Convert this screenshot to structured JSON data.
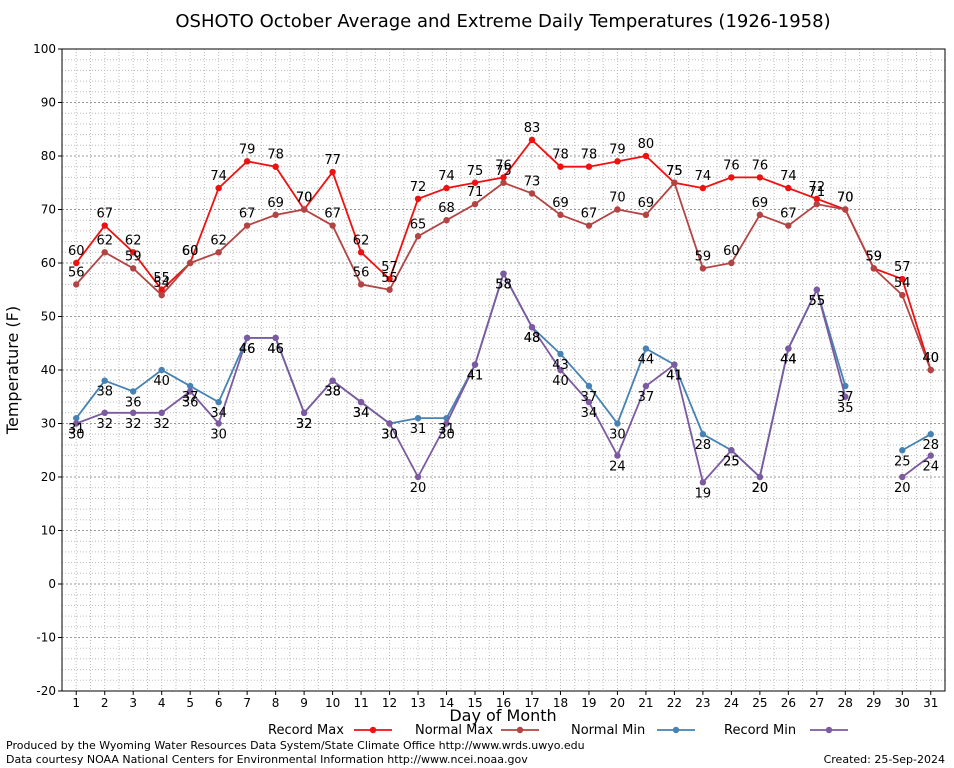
{
  "chart_data": {
    "type": "line",
    "title": "OSHOTO October Average and Extreme Daily Temperatures (1926-1958)",
    "xlabel": "Day of Month",
    "ylabel": "Temperature (F)",
    "xlim": [
      0.5,
      31.5
    ],
    "ylim": [
      -20,
      100
    ],
    "y_ticks": [
      -20,
      -10,
      0,
      10,
      20,
      30,
      40,
      50,
      60,
      70,
      80,
      90,
      100
    ],
    "x": [
      1,
      2,
      3,
      4,
      5,
      6,
      7,
      8,
      9,
      10,
      11,
      12,
      13,
      14,
      15,
      16,
      17,
      18,
      19,
      20,
      21,
      22,
      23,
      24,
      25,
      26,
      27,
      28,
      29,
      30,
      31
    ],
    "grid": true,
    "legend_position": "bottom",
    "series": [
      {
        "name": "Record Max",
        "color": "#ee1111",
        "values": [
          60,
          67,
          62,
          55,
          60,
          74,
          79,
          78,
          70,
          77,
          62,
          57,
          72,
          74,
          75,
          76,
          83,
          78,
          78,
          79,
          80,
          75,
          74,
          76,
          76,
          74,
          72,
          70,
          59,
          57,
          40
        ]
      },
      {
        "name": "Normal Max",
        "color": "#b44444",
        "values": [
          56,
          62,
          59,
          54,
          60,
          62,
          67,
          69,
          70,
          67,
          56,
          55,
          65,
          68,
          71,
          75,
          73,
          69,
          67,
          70,
          69,
          75,
          59,
          60,
          69,
          67,
          71,
          70,
          59,
          54,
          40
        ]
      },
      {
        "name": "Normal Min",
        "color": "#4682b4",
        "values": [
          31,
          38,
          36,
          40,
          37,
          34,
          46,
          46,
          32,
          38,
          34,
          30,
          31,
          31,
          41,
          58,
          48,
          43,
          37,
          30,
          44,
          41,
          28,
          25,
          20,
          44,
          55,
          37,
          null,
          25,
          28
        ]
      },
      {
        "name": "Record Min",
        "color": "#7b5aa0",
        "values": [
          30,
          32,
          32,
          32,
          36,
          30,
          46,
          46,
          32,
          38,
          34,
          30,
          20,
          30,
          41,
          58,
          48,
          40,
          34,
          24,
          37,
          41,
          19,
          25,
          20,
          44,
          55,
          35,
          null,
          20,
          24
        ]
      }
    ]
  },
  "footer": {
    "left_line1": "Produced by the Wyoming Water Resources Data System/State Climate Office http://www.wrds.uwyo.edu",
    "left_line2": "Data courtesy NOAA National Centers for Environmental Information http://www.ncei.noaa.gov",
    "created": "Created:  25-Sep-2024"
  }
}
